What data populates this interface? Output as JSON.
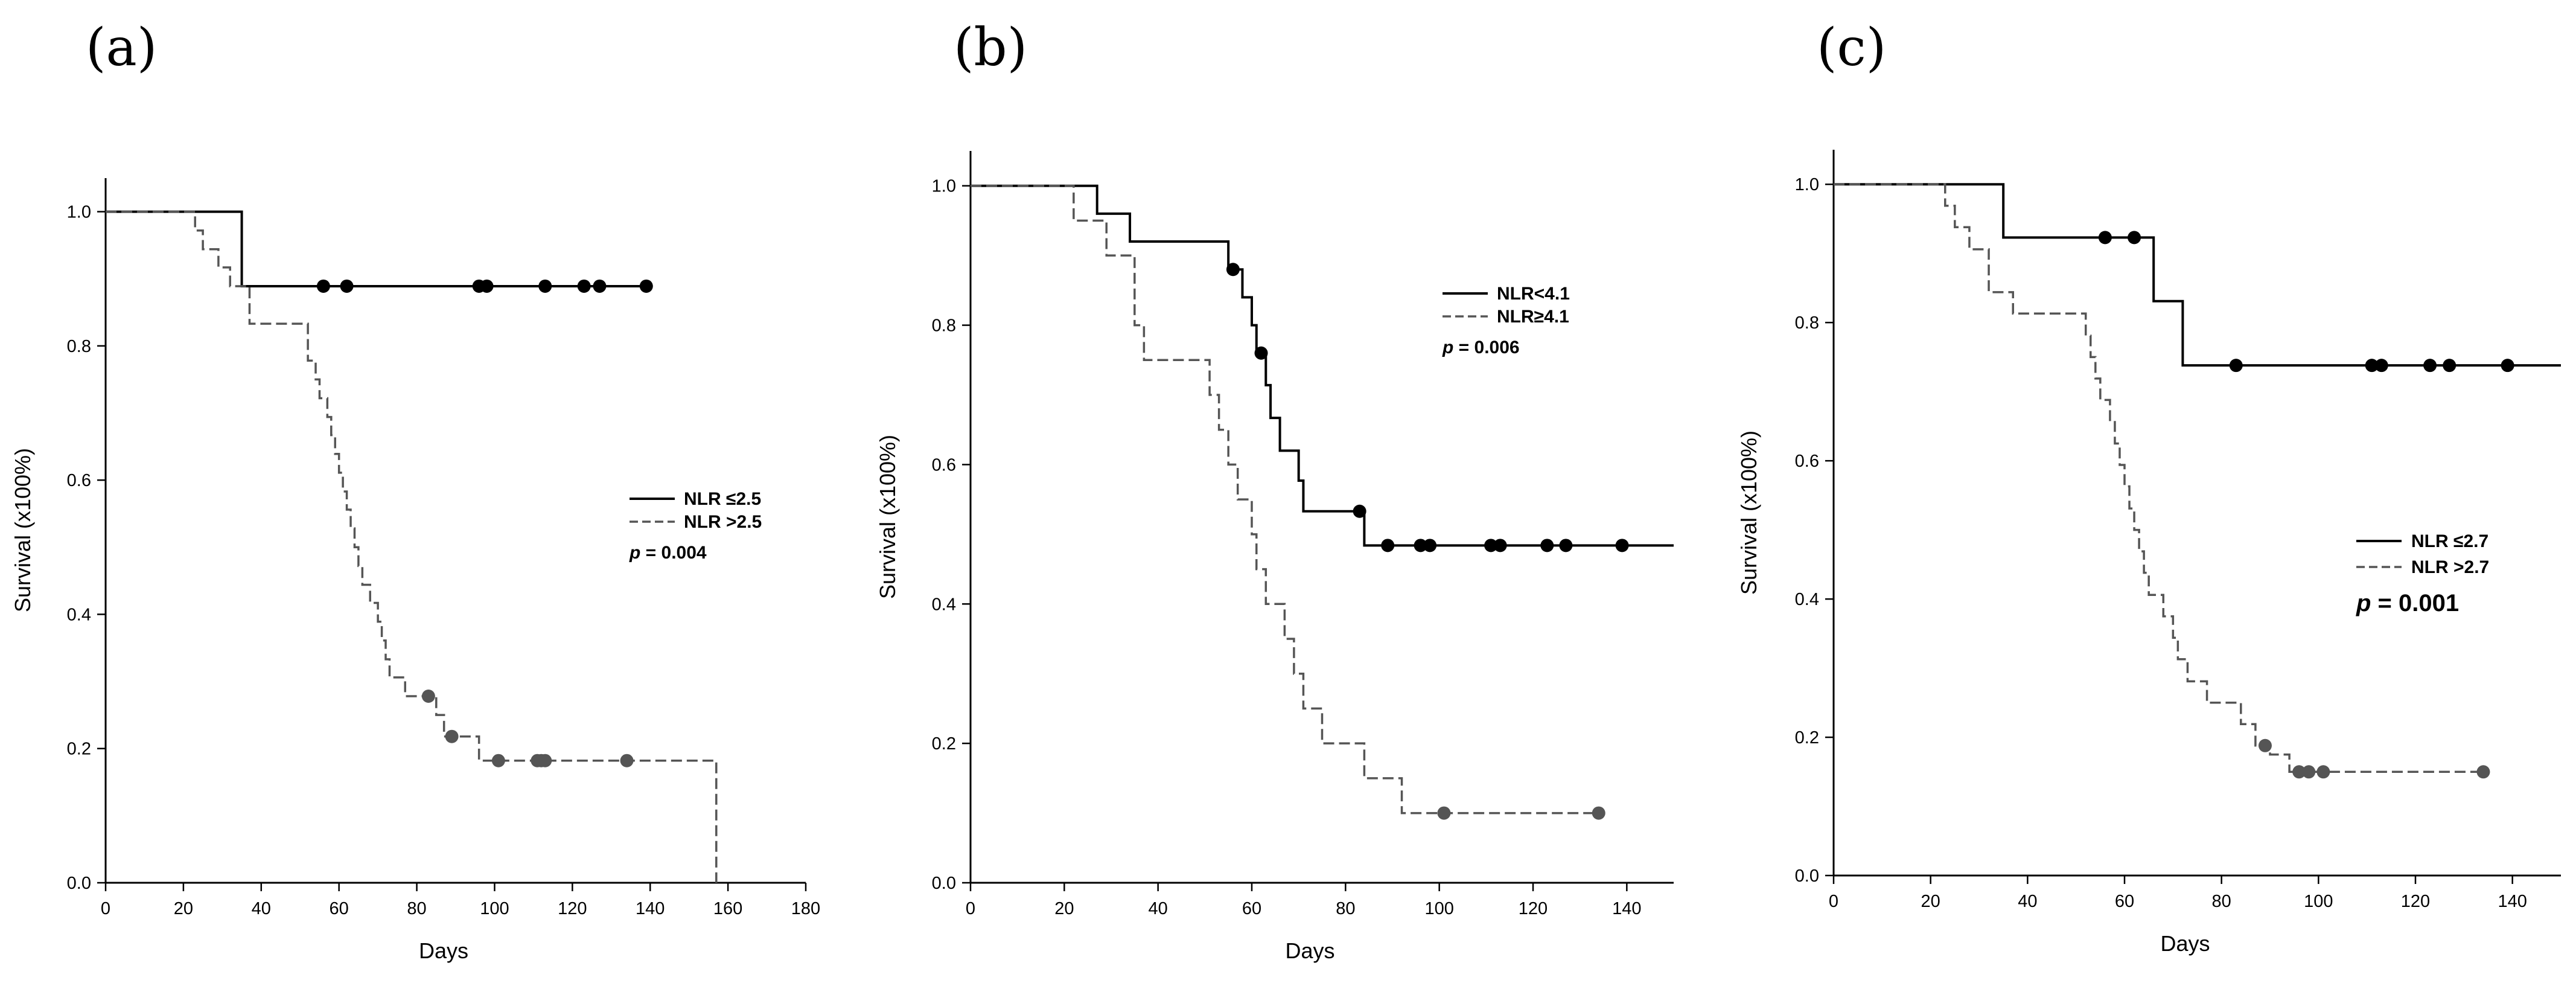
{
  "chart_data": [
    {
      "type": "line",
      "panel_label": "(a)",
      "xlabel": "Days",
      "ylabel": "Survival (x100%)",
      "xlim": [
        0,
        180
      ],
      "ylim": [
        0,
        1.05
      ],
      "xticks": [
        "0",
        "20",
        "40",
        "60",
        "80",
        "100",
        "120",
        "140",
        "160",
        "180"
      ],
      "yticks": [
        "0.0",
        "0.2",
        "0.4",
        "0.6",
        "0.8",
        "1.0"
      ],
      "legend": {
        "position": "center-right",
        "p_prefix": "p",
        "p_rest": " = 0.004"
      },
      "series": [
        {
          "name": "NLR ≤2.5",
          "style": "solid",
          "color": "#000000",
          "steps": [
            [
              0,
              1.0
            ],
            [
              35,
              0.889
            ],
            [
              140,
              0.889
            ]
          ],
          "censored_x": [
            56,
            62,
            96,
            98,
            113,
            123,
            127,
            139
          ]
        },
        {
          "name": "NLR >2.5",
          "style": "dashed",
          "color": "#555555",
          "steps": [
            [
              0,
              1.0
            ],
            [
              23,
              0.972
            ],
            [
              25,
              0.944
            ],
            [
              29,
              0.917
            ],
            [
              32,
              0.889
            ],
            [
              37,
              0.833
            ],
            [
              52,
              0.778
            ],
            [
              54,
              0.75
            ],
            [
              55,
              0.722
            ],
            [
              57,
              0.694
            ],
            [
              58,
              0.667
            ],
            [
              59,
              0.639
            ],
            [
              60,
              0.611
            ],
            [
              61,
              0.583
            ],
            [
              62,
              0.556
            ],
            [
              63,
              0.528
            ],
            [
              64,
              0.5
            ],
            [
              65,
              0.472
            ],
            [
              66,
              0.444
            ],
            [
              68,
              0.417
            ],
            [
              70,
              0.389
            ],
            [
              71,
              0.361
            ],
            [
              72,
              0.333
            ],
            [
              73,
              0.306
            ],
            [
              77,
              0.278
            ],
            [
              85,
              0.25
            ],
            [
              87,
              0.218
            ],
            [
              96,
              0.182
            ],
            [
              157,
              0.0
            ]
          ],
          "censored_x": [
            83,
            89,
            101,
            111,
            112,
            113,
            134
          ]
        }
      ]
    },
    {
      "type": "line",
      "panel_label": "(b)",
      "xlabel": "Days",
      "ylabel": "Survival (x100%)",
      "xlim": [
        0,
        150
      ],
      "ylim": [
        0,
        1.05
      ],
      "xticks": [
        "0",
        "20",
        "40",
        "60",
        "80",
        "100",
        "120",
        "140"
      ],
      "yticks": [
        "0.0",
        "0.2",
        "0.4",
        "0.6",
        "0.8",
        "1.0"
      ],
      "legend": {
        "position": "top-right",
        "p_prefix": "p",
        "p_rest": " = 0.006"
      },
      "series": [
        {
          "name": "NLR<4.1",
          "style": "solid",
          "color": "#000000",
          "steps": [
            [
              0,
              1.0
            ],
            [
              27,
              0.96
            ],
            [
              34,
              0.92
            ],
            [
              55,
              0.88
            ],
            [
              58,
              0.84
            ],
            [
              60,
              0.8
            ],
            [
              61,
              0.76
            ],
            [
              63,
              0.714
            ],
            [
              64,
              0.667
            ],
            [
              66,
              0.62
            ],
            [
              70,
              0.577
            ],
            [
              71,
              0.533
            ],
            [
              84,
              0.484
            ],
            [
              150,
              0.484
            ]
          ],
          "censored_x": [
            56,
            62,
            83,
            89,
            96,
            98,
            111,
            113,
            123,
            127,
            139
          ]
        },
        {
          "name": "NLR≥4.1",
          "style": "dashed",
          "color": "#555555",
          "steps": [
            [
              0,
              1.0
            ],
            [
              22,
              0.95
            ],
            [
              29,
              0.9
            ],
            [
              35,
              0.8
            ],
            [
              37,
              0.75
            ],
            [
              51,
              0.7
            ],
            [
              53,
              0.65
            ],
            [
              55,
              0.6
            ],
            [
              57,
              0.55
            ],
            [
              60,
              0.5
            ],
            [
              61,
              0.45
            ],
            [
              63,
              0.4
            ],
            [
              67,
              0.35
            ],
            [
              69,
              0.3
            ],
            [
              71,
              0.25
            ],
            [
              75,
              0.2
            ],
            [
              84,
              0.15
            ],
            [
              92,
              0.1
            ]
          ],
          "censored_x": [
            101,
            134
          ]
        }
      ]
    },
    {
      "type": "line",
      "panel_label": "(c)",
      "xlabel": "Days",
      "ylabel": "Survival (x100%)",
      "xlim": [
        0,
        150
      ],
      "ylim": [
        0,
        1.05
      ],
      "xticks": [
        "0",
        "20",
        "40",
        "60",
        "80",
        "100",
        "120",
        "140"
      ],
      "yticks": [
        "0.0",
        "0.2",
        "0.4",
        "0.6",
        "0.8",
        "1.0"
      ],
      "legend": {
        "position": "center-right",
        "p_prefix": "p",
        "p_rest": " = 0.001"
      },
      "series": [
        {
          "name": "NLR ≤2.7",
          "style": "solid",
          "color": "#000000",
          "steps": [
            [
              0,
              1.0
            ],
            [
              35,
              0.923
            ],
            [
              66,
              0.831
            ],
            [
              72,
              0.738
            ],
            [
              150,
              0.738
            ]
          ],
          "censored_x": [
            56,
            62,
            83,
            111,
            113,
            123,
            127,
            139
          ]
        },
        {
          "name": "NLR >2.7",
          "style": "dashed",
          "color": "#555555",
          "steps": [
            [
              0,
              1.0
            ],
            [
              23,
              0.969
            ],
            [
              25,
              0.938
            ],
            [
              28,
              0.906
            ],
            [
              32,
              0.844
            ],
            [
              37,
              0.813
            ],
            [
              52,
              0.781
            ],
            [
              53,
              0.75
            ],
            [
              54,
              0.719
            ],
            [
              55,
              0.688
            ],
            [
              57,
              0.656
            ],
            [
              58,
              0.625
            ],
            [
              59,
              0.594
            ],
            [
              60,
              0.563
            ],
            [
              61,
              0.531
            ],
            [
              62,
              0.5
            ],
            [
              63,
              0.469
            ],
            [
              64,
              0.438
            ],
            [
              65,
              0.406
            ],
            [
              68,
              0.375
            ],
            [
              70,
              0.344
            ],
            [
              71,
              0.313
            ],
            [
              73,
              0.281
            ],
            [
              77,
              0.25
            ],
            [
              84,
              0.219
            ],
            [
              87,
              0.188
            ],
            [
              90,
              0.175
            ],
            [
              94,
              0.15
            ]
          ],
          "censored_x": [
            89,
            96,
            98,
            101,
            134
          ]
        }
      ]
    }
  ]
}
